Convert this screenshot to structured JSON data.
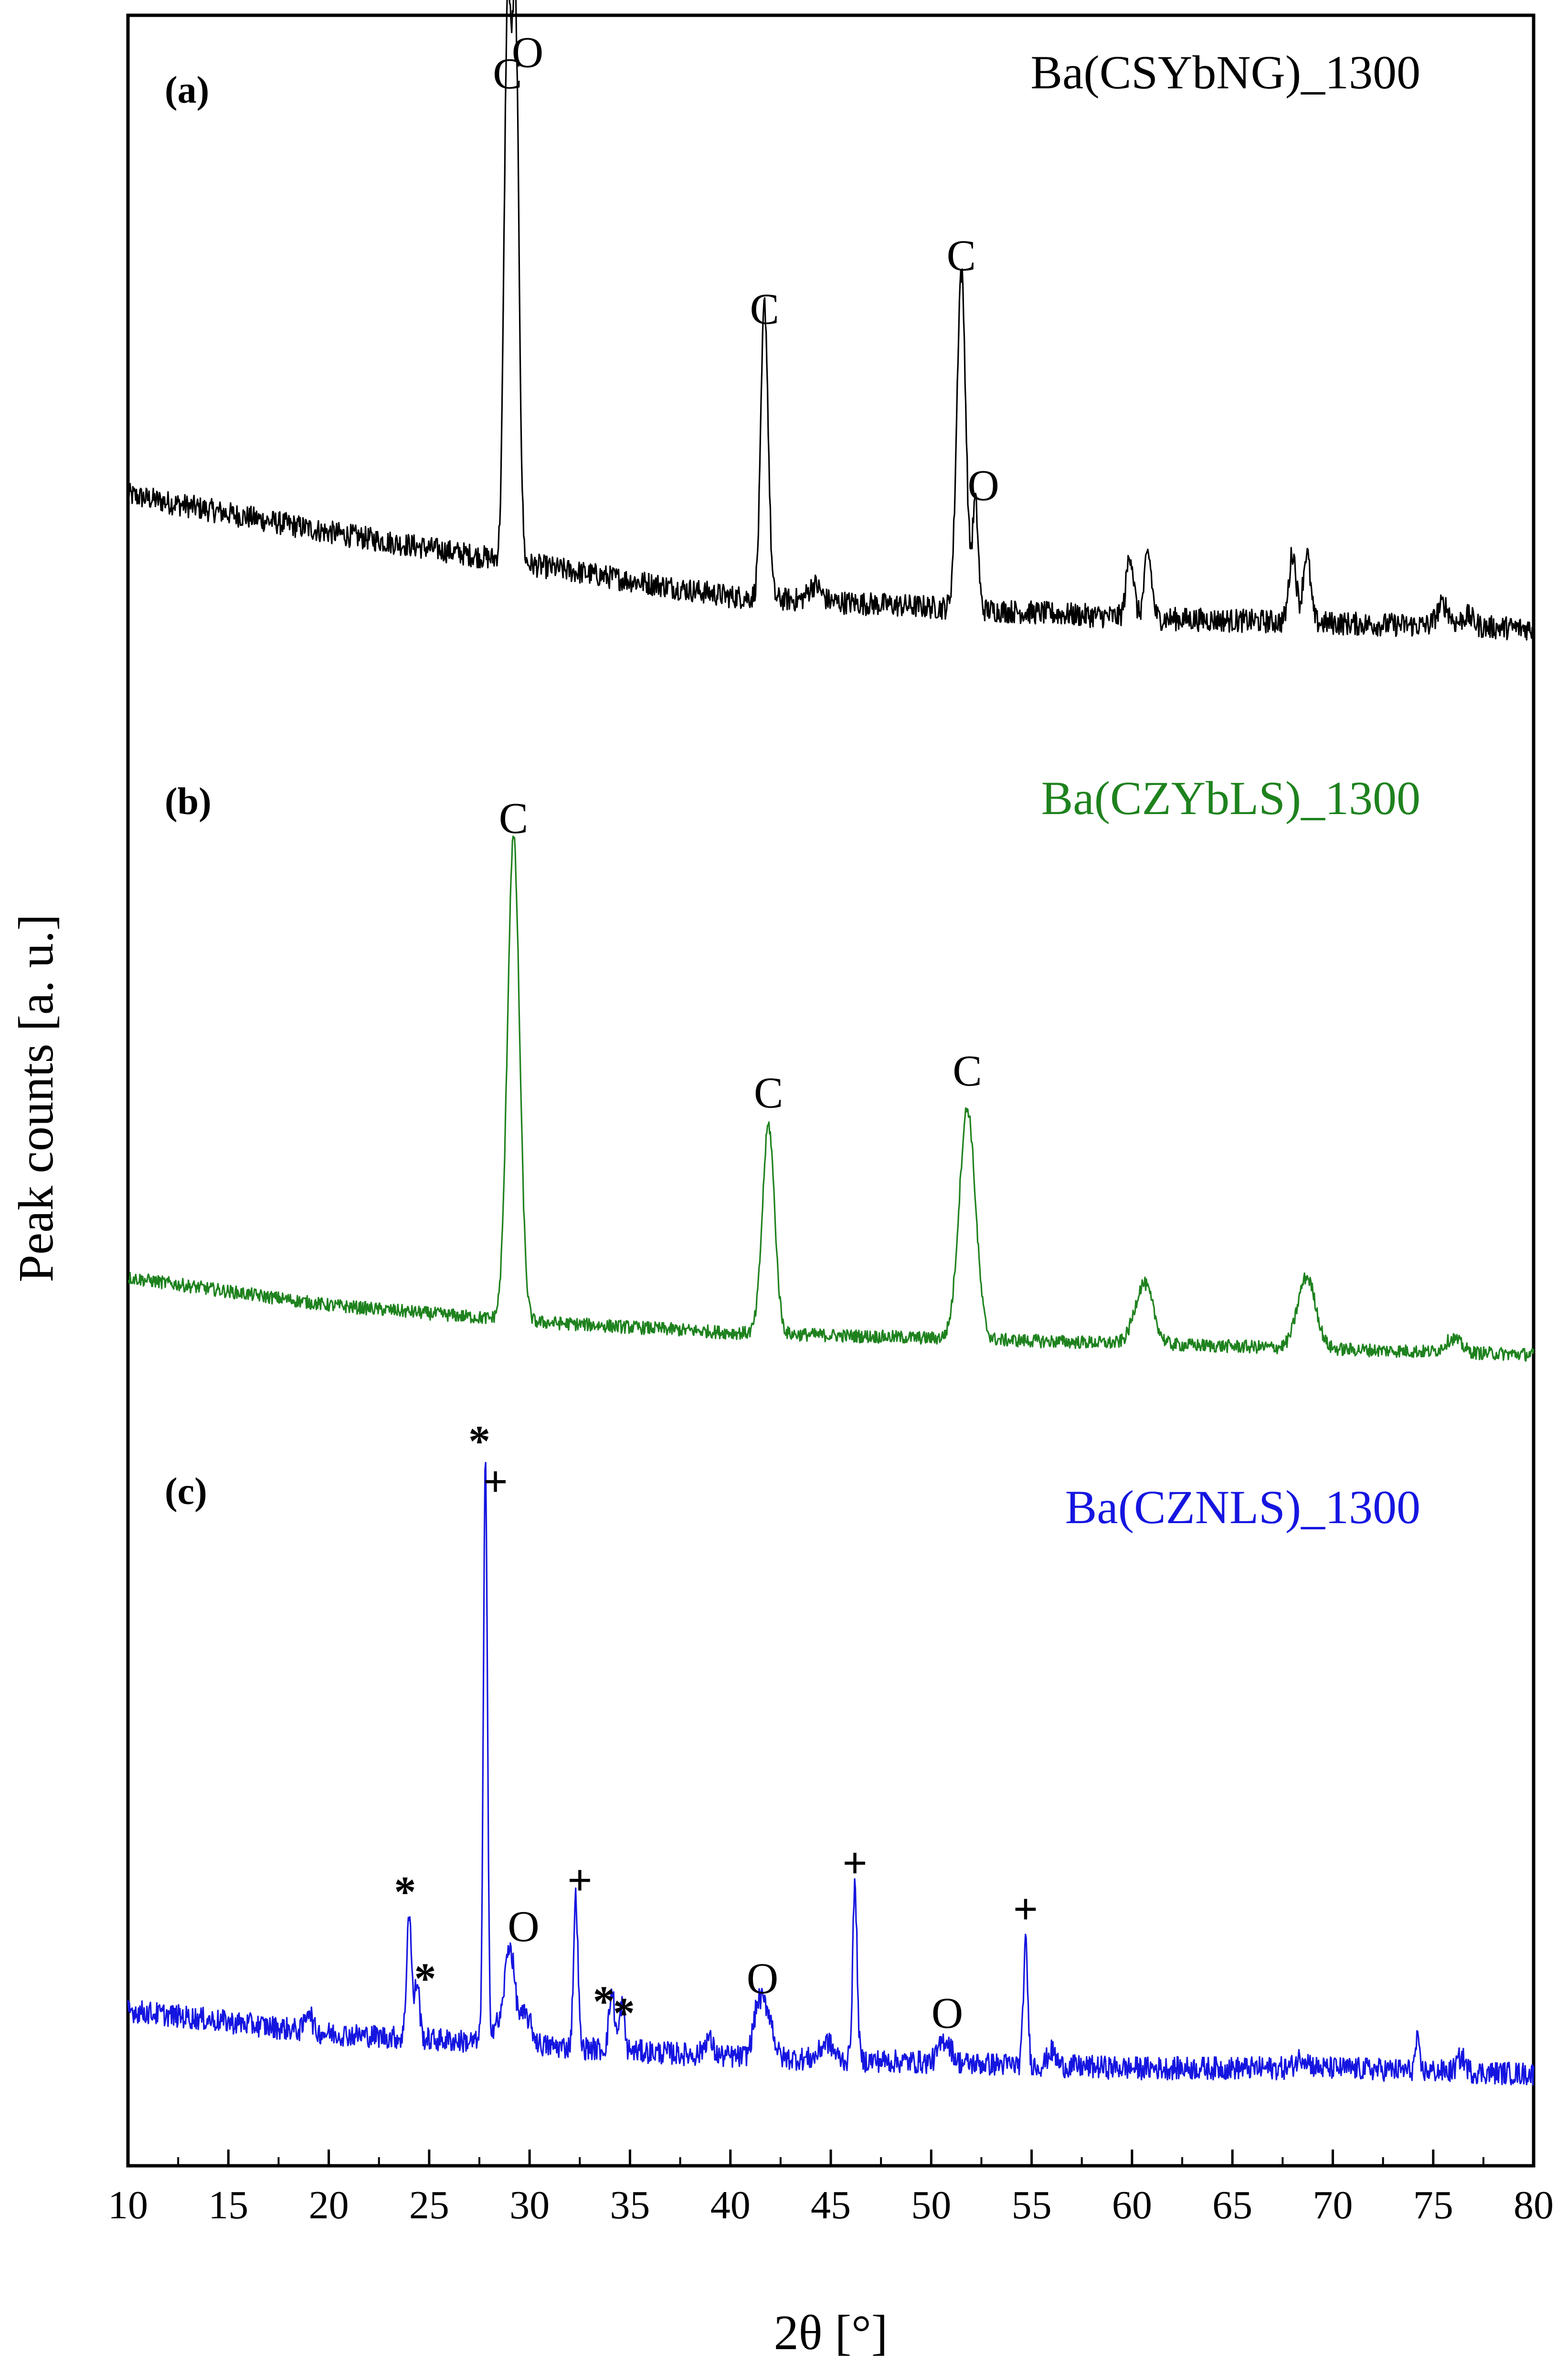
{
  "chart_data": {
    "type": "line",
    "xlabel": "2θ [°]",
    "ylabel": "Peak counts [a. u.]",
    "xlim": [
      10,
      80
    ],
    "xticks": [
      10,
      15,
      20,
      25,
      30,
      35,
      40,
      45,
      50,
      55,
      60,
      65,
      70,
      75,
      80
    ],
    "yticks_shown": false,
    "grid": false,
    "legend": "none",
    "series": [
      {
        "name": "Ba(CSYbNG)_1300",
        "panel": "(a)",
        "color": "#000000",
        "baseline": [
          [
            10,
            28
          ],
          [
            20,
            21
          ],
          [
            30,
            15
          ],
          [
            40,
            9
          ],
          [
            50,
            7
          ],
          [
            60,
            5
          ],
          [
            70,
            4
          ],
          [
            80,
            3
          ]
        ],
        "peaks": [
          {
            "x": 28.9,
            "h": 100,
            "w": 0.17
          },
          {
            "x": 29.3,
            "h": 100,
            "w": 0.17
          },
          {
            "x": 41.7,
            "h": 55,
            "w": 0.18
          },
          {
            "x": 44.2,
            "h": 3,
            "w": 0.3
          },
          {
            "x": 51.5,
            "h": 63,
            "w": 0.22
          },
          {
            "x": 52.2,
            "h": 20,
            "w": 0.14
          },
          {
            "x": 59.9,
            "h": 12,
            "w": 0.18
          },
          {
            "x": 60.8,
            "h": 12,
            "w": 0.18
          },
          {
            "x": 68.0,
            "h": 13,
            "w": 0.18
          },
          {
            "x": 68.7,
            "h": 13,
            "w": 0.18
          },
          {
            "x": 75.5,
            "h": 4,
            "w": 0.3
          },
          {
            "x": 76.7,
            "h": 2,
            "w": 0.3
          }
        ],
        "noise": 2.2,
        "annotations": [
          {
            "text": "C",
            "x": 28.9,
            "y": 104
          },
          {
            "text": "O",
            "x": 29.9,
            "y": 108
          },
          {
            "text": "C",
            "x": 41.7,
            "y": 60
          },
          {
            "text": "C",
            "x": 51.5,
            "y": 70
          },
          {
            "text": "O",
            "x": 52.6,
            "y": 27
          }
        ]
      },
      {
        "name": "Ba(CZYbLS)_1300",
        "panel": "(b)",
        "color": "#1e821e",
        "baseline": [
          [
            10,
            16
          ],
          [
            20,
            11
          ],
          [
            30,
            8
          ],
          [
            40,
            6
          ],
          [
            50,
            5
          ],
          [
            60,
            4
          ],
          [
            70,
            3
          ],
          [
            80,
            2
          ]
        ],
        "peaks": [
          {
            "x": 29.2,
            "h": 88,
            "w": 0.3
          },
          {
            "x": 41.9,
            "h": 38,
            "w": 0.3
          },
          {
            "x": 51.8,
            "h": 42,
            "w": 0.4
          },
          {
            "x": 60.6,
            "h": 11,
            "w": 0.45
          },
          {
            "x": 68.7,
            "h": 13,
            "w": 0.45
          },
          {
            "x": 76.0,
            "h": 2.5,
            "w": 0.4
          }
        ],
        "noise": 1.2,
        "annotations": [
          {
            "text": "C",
            "x": 29.2,
            "y": 97
          },
          {
            "text": "C",
            "x": 41.9,
            "y": 47
          },
          {
            "text": "C",
            "x": 51.8,
            "y": 51
          }
        ]
      },
      {
        "name": "Ba(CZNLS)_1300",
        "panel": "(c)",
        "color": "#1515e0",
        "baseline": [
          [
            10,
            14
          ],
          [
            20,
            10
          ],
          [
            30,
            8
          ],
          [
            40,
            6
          ],
          [
            50,
            5
          ],
          [
            60,
            4
          ],
          [
            70,
            4
          ],
          [
            80,
            3
          ]
        ],
        "peaks": [
          {
            "x": 19.0,
            "h": 4,
            "w": 0.15
          },
          {
            "x": 24.0,
            "h": 22,
            "w": 0.12
          },
          {
            "x": 24.4,
            "h": 10,
            "w": 0.12
          },
          {
            "x": 27.8,
            "h": 100,
            "w": 0.1
          },
          {
            "x": 28.3,
            "h": 3,
            "w": 0.2
          },
          {
            "x": 29.0,
            "h": 17,
            "w": 0.25
          },
          {
            "x": 29.8,
            "h": 5,
            "w": 0.3
          },
          {
            "x": 32.3,
            "h": 26,
            "w": 0.11
          },
          {
            "x": 34.1,
            "h": 10,
            "w": 0.14
          },
          {
            "x": 34.6,
            "h": 8,
            "w": 0.12
          },
          {
            "x": 38.9,
            "h": 3,
            "w": 0.2
          },
          {
            "x": 41.4,
            "h": 9,
            "w": 0.25
          },
          {
            "x": 41.9,
            "h": 7,
            "w": 0.25
          },
          {
            "x": 44.8,
            "h": 3,
            "w": 0.3
          },
          {
            "x": 46.2,
            "h": 30,
            "w": 0.11
          },
          {
            "x": 50.7,
            "h": 4,
            "w": 0.3
          },
          {
            "x": 54.7,
            "h": 21,
            "w": 0.11
          },
          {
            "x": 56.0,
            "h": 2.5,
            "w": 0.2
          },
          {
            "x": 68.5,
            "h": 2,
            "w": 0.3
          },
          {
            "x": 74.2,
            "h": 5,
            "w": 0.1
          },
          {
            "x": 76.4,
            "h": 2.5,
            "w": 0.2
          }
        ],
        "noise": 2.0,
        "annotations": [
          {
            "text": "*",
            "x": 27.5,
            "y": 110
          },
          {
            "text": "+",
            "x": 28.3,
            "y": 103
          },
          {
            "text": "*",
            "x": 23.8,
            "y": 32
          },
          {
            "text": "*",
            "x": 24.8,
            "y": 17
          },
          {
            "text": "O",
            "x": 29.7,
            "y": 26
          },
          {
            "text": "+",
            "x": 32.5,
            "y": 34
          },
          {
            "text": "*",
            "x": 33.7,
            "y": 13
          },
          {
            "text": "*",
            "x": 34.7,
            "y": 11
          },
          {
            "text": "O",
            "x": 41.6,
            "y": 17
          },
          {
            "text": "+",
            "x": 46.2,
            "y": 37
          },
          {
            "text": "O",
            "x": 50.8,
            "y": 11
          },
          {
            "text": "+",
            "x": 54.7,
            "y": 29
          }
        ]
      }
    ]
  }
}
